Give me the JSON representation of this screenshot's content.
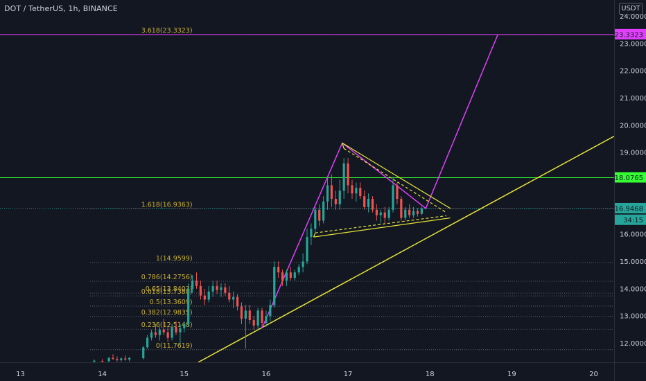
{
  "header": {
    "title": "DOT / TetherUS, 1h, BINANCE",
    "currency": "USDT"
  },
  "colors": {
    "background": "#131722",
    "up": "#26a69a",
    "down": "#ef5350",
    "magenta": "#e040fb",
    "green_line": "#33ff33",
    "yellow": "#e8e337",
    "fib": "#c9b037"
  },
  "chart_data": {
    "type": "candlestick",
    "symbol": "DOT / TetherUS",
    "interval": "1h",
    "exchange": "BINANCE",
    "ylim": [
      11.3,
      24.6
    ],
    "xlim": [
      12.75,
      20.25
    ],
    "y_ticks": [
      "12.0000",
      "13.0000",
      "14.0000",
      "15.0000",
      "16.0000",
      "17.0000",
      "18.0000",
      "19.0000",
      "20.0000",
      "21.0000",
      "22.0000",
      "23.0000",
      "24.0000"
    ],
    "x_ticks": [
      {
        "x": 13,
        "label": "13"
      },
      {
        "x": 14,
        "label": "14"
      },
      {
        "x": 15,
        "label": "15"
      },
      {
        "x": 16,
        "label": "16"
      },
      {
        "x": 17,
        "label": "17"
      },
      {
        "x": 18,
        "label": "18"
      },
      {
        "x": 19,
        "label": "19"
      },
      {
        "x": 20,
        "label": "20"
      }
    ],
    "price_badges": [
      {
        "value": 23.3323,
        "label": "23.3323",
        "color": "#e040fb"
      },
      {
        "value": 18.0765,
        "label": "18.0765",
        "color": "#33ff33"
      },
      {
        "value": 16.9468,
        "label": "16.9468",
        "color": "#26a69a"
      },
      {
        "value": 16.52,
        "label": "34:15",
        "color": "#26a69a"
      }
    ],
    "horizontal_lines": [
      {
        "name": "target",
        "value": 23.3323,
        "color": "#e040fb"
      },
      {
        "name": "resistance",
        "value": 18.0765,
        "color": "#33ff33"
      },
      {
        "name": "current",
        "value": 16.9468,
        "color": "#26a69a",
        "dotted": true
      }
    ],
    "fib_levels": [
      {
        "ratio": "3.618",
        "value": 23.3323,
        "label": "3.618(23.3323)"
      },
      {
        "ratio": "1.618",
        "value": 16.9363,
        "label": "1.618(16.9363)"
      },
      {
        "ratio": "1",
        "value": 14.9599,
        "label": "1(14.9599)"
      },
      {
        "ratio": "0.786",
        "value": 14.2756,
        "label": "0.786(14.2756)"
      },
      {
        "ratio": "0.65",
        "value": 13.8403,
        "label": "0.65(13.8403)"
      },
      {
        "ratio": "0.618",
        "value": 13.7388,
        "label": "0.618(13.7388)"
      },
      {
        "ratio": "0.5",
        "value": 13.3609,
        "label": "0.5(13.3609)"
      },
      {
        "ratio": "0.382",
        "value": 12.9835,
        "label": "0.382(12.9835)"
      },
      {
        "ratio": "0.236",
        "value": 12.5148,
        "label": "0.236(12.5148)"
      },
      {
        "ratio": "0",
        "value": 11.7619,
        "label": "0(11.7619)"
      }
    ],
    "trendlines": [
      {
        "name": "yellow-rising-support",
        "color": "#e8e337",
        "points": [
          [
            15.17,
            11.3
          ],
          [
            20.25,
            19.6
          ]
        ]
      },
      {
        "name": "magenta-impulse-path",
        "color": "#e040fb",
        "points": [
          [
            15.95,
            12.55
          ],
          [
            16.93,
            19.35
          ],
          [
            17.95,
            16.95
          ],
          [
            18.83,
            23.3323
          ]
        ]
      }
    ],
    "triangle": {
      "color": "#e8e337",
      "upper": [
        [
          16.93,
          19.35
        ],
        [
          18.25,
          16.95
        ]
      ],
      "lower": [
        [
          16.58,
          15.9
        ],
        [
          18.25,
          16.6
        ]
      ],
      "upper_band": [
        [
          16.95,
          19.15
        ],
        [
          18.2,
          16.8
        ]
      ],
      "lower_band": [
        [
          16.6,
          16.05
        ],
        [
          18.2,
          16.68
        ]
      ]
    },
    "candles": [
      {
        "x": 13.9,
        "o": 11.32,
        "h": 11.4,
        "l": 11.3,
        "c": 11.36
      },
      {
        "x": 14.0,
        "o": 11.35,
        "h": 11.42,
        "l": 11.3,
        "c": 11.33
      },
      {
        "x": 14.08,
        "o": 11.34,
        "h": 11.5,
        "l": 11.3,
        "c": 11.46
      },
      {
        "x": 14.13,
        "o": 11.46,
        "h": 11.6,
        "l": 11.4,
        "c": 11.42
      },
      {
        "x": 14.18,
        "o": 11.42,
        "h": 11.52,
        "l": 11.33,
        "c": 11.38
      },
      {
        "x": 14.23,
        "o": 11.38,
        "h": 11.48,
        "l": 11.32,
        "c": 11.44
      },
      {
        "x": 14.28,
        "o": 11.44,
        "h": 11.55,
        "l": 11.36,
        "c": 11.4
      },
      {
        "x": 14.33,
        "o": 11.4,
        "h": 11.5,
        "l": 11.33,
        "c": 11.46
      },
      {
        "x": 14.5,
        "o": 11.45,
        "h": 11.9,
        "l": 11.4,
        "c": 11.85
      },
      {
        "x": 14.55,
        "o": 11.85,
        "h": 12.3,
        "l": 11.8,
        "c": 12.2
      },
      {
        "x": 14.6,
        "o": 12.2,
        "h": 12.5,
        "l": 12.1,
        "c": 12.4
      },
      {
        "x": 14.65,
        "o": 12.4,
        "h": 12.7,
        "l": 12.2,
        "c": 12.3
      },
      {
        "x": 14.7,
        "o": 12.3,
        "h": 12.6,
        "l": 12.1,
        "c": 12.5
      },
      {
        "x": 14.75,
        "o": 12.5,
        "h": 12.9,
        "l": 12.3,
        "c": 12.4
      },
      {
        "x": 14.8,
        "o": 12.4,
        "h": 12.6,
        "l": 12.05,
        "c": 12.2
      },
      {
        "x": 14.85,
        "o": 12.2,
        "h": 12.7,
        "l": 12.1,
        "c": 12.6
      },
      {
        "x": 14.9,
        "o": 12.6,
        "h": 12.8,
        "l": 12.3,
        "c": 12.4
      },
      {
        "x": 14.95,
        "o": 12.4,
        "h": 12.7,
        "l": 11.95,
        "c": 12.55
      },
      {
        "x": 15.0,
        "o": 12.55,
        "h": 12.8,
        "l": 12.4,
        "c": 12.7
      },
      {
        "x": 15.05,
        "o": 12.7,
        "h": 14.2,
        "l": 12.6,
        "c": 14.0
      },
      {
        "x": 15.1,
        "o": 14.0,
        "h": 14.5,
        "l": 13.85,
        "c": 14.3
      },
      {
        "x": 15.15,
        "o": 14.3,
        "h": 14.6,
        "l": 14.0,
        "c": 14.1
      },
      {
        "x": 15.2,
        "o": 14.1,
        "h": 14.3,
        "l": 13.6,
        "c": 13.75
      },
      {
        "x": 15.25,
        "o": 13.75,
        "h": 14.0,
        "l": 13.4,
        "c": 13.6
      },
      {
        "x": 15.3,
        "o": 13.6,
        "h": 14.1,
        "l": 13.5,
        "c": 13.9
      },
      {
        "x": 15.35,
        "o": 13.9,
        "h": 14.3,
        "l": 13.7,
        "c": 14.1
      },
      {
        "x": 15.4,
        "o": 14.1,
        "h": 14.3,
        "l": 13.8,
        "c": 13.95
      },
      {
        "x": 15.45,
        "o": 13.95,
        "h": 14.2,
        "l": 13.7,
        "c": 14.05
      },
      {
        "x": 15.5,
        "o": 14.05,
        "h": 14.2,
        "l": 13.75,
        "c": 13.85
      },
      {
        "x": 15.55,
        "o": 13.85,
        "h": 14.1,
        "l": 13.5,
        "c": 13.6
      },
      {
        "x": 15.6,
        "o": 13.6,
        "h": 13.9,
        "l": 13.3,
        "c": 13.7
      },
      {
        "x": 15.65,
        "o": 13.7,
        "h": 13.8,
        "l": 13.2,
        "c": 13.35
      },
      {
        "x": 15.7,
        "o": 13.35,
        "h": 13.5,
        "l": 12.7,
        "c": 12.9
      },
      {
        "x": 15.75,
        "o": 12.9,
        "h": 13.4,
        "l": 11.8,
        "c": 13.2
      },
      {
        "x": 15.8,
        "o": 13.2,
        "h": 13.4,
        "l": 12.7,
        "c": 12.85
      },
      {
        "x": 15.85,
        "o": 12.85,
        "h": 13.0,
        "l": 12.5,
        "c": 12.65
      },
      {
        "x": 15.9,
        "o": 12.65,
        "h": 13.3,
        "l": 12.5,
        "c": 13.2
      },
      {
        "x": 15.95,
        "o": 13.2,
        "h": 13.3,
        "l": 12.6,
        "c": 12.75
      },
      {
        "x": 16.0,
        "o": 12.75,
        "h": 13.2,
        "l": 12.6,
        "c": 13.0
      },
      {
        "x": 16.05,
        "o": 13.0,
        "h": 13.6,
        "l": 12.8,
        "c": 13.4
      },
      {
        "x": 16.1,
        "o": 13.4,
        "h": 15.0,
        "l": 13.3,
        "c": 14.8
      },
      {
        "x": 16.15,
        "o": 14.8,
        "h": 15.0,
        "l": 14.4,
        "c": 14.6
      },
      {
        "x": 16.2,
        "o": 14.6,
        "h": 14.7,
        "l": 14.1,
        "c": 14.3
      },
      {
        "x": 16.25,
        "o": 14.3,
        "h": 14.7,
        "l": 14.1,
        "c": 14.6
      },
      {
        "x": 16.3,
        "o": 14.6,
        "h": 14.8,
        "l": 14.3,
        "c": 14.4
      },
      {
        "x": 16.35,
        "o": 14.4,
        "h": 14.7,
        "l": 14.3,
        "c": 14.6
      },
      {
        "x": 16.4,
        "o": 14.6,
        "h": 14.9,
        "l": 14.5,
        "c": 14.8
      },
      {
        "x": 16.45,
        "o": 14.8,
        "h": 15.3,
        "l": 14.6,
        "c": 15.0
      },
      {
        "x": 16.5,
        "o": 15.0,
        "h": 16.2,
        "l": 14.9,
        "c": 15.9
      },
      {
        "x": 16.55,
        "o": 15.9,
        "h": 16.4,
        "l": 15.6,
        "c": 16.2
      },
      {
        "x": 16.6,
        "o": 16.2,
        "h": 17.0,
        "l": 16.0,
        "c": 16.9
      },
      {
        "x": 16.65,
        "o": 16.9,
        "h": 17.1,
        "l": 16.3,
        "c": 16.5
      },
      {
        "x": 16.7,
        "o": 16.5,
        "h": 17.4,
        "l": 16.4,
        "c": 17.2
      },
      {
        "x": 16.75,
        "o": 17.2,
        "h": 18.1,
        "l": 16.9,
        "c": 17.8
      },
      {
        "x": 16.8,
        "o": 17.8,
        "h": 18.2,
        "l": 17.0,
        "c": 17.3
      },
      {
        "x": 16.85,
        "o": 17.3,
        "h": 17.6,
        "l": 16.9,
        "c": 17.1
      },
      {
        "x": 16.9,
        "o": 17.1,
        "h": 18.0,
        "l": 16.9,
        "c": 17.6
      },
      {
        "x": 16.95,
        "o": 17.6,
        "h": 18.8,
        "l": 17.3,
        "c": 18.6
      },
      {
        "x": 17.0,
        "o": 18.6,
        "h": 18.8,
        "l": 17.5,
        "c": 17.8
      },
      {
        "x": 17.05,
        "o": 17.8,
        "h": 18.0,
        "l": 17.3,
        "c": 17.5
      },
      {
        "x": 17.1,
        "o": 17.5,
        "h": 17.9,
        "l": 17.2,
        "c": 17.7
      },
      {
        "x": 17.15,
        "o": 17.7,
        "h": 17.9,
        "l": 17.3,
        "c": 17.4
      },
      {
        "x": 17.2,
        "o": 17.4,
        "h": 17.6,
        "l": 16.9,
        "c": 17.0
      },
      {
        "x": 17.25,
        "o": 17.0,
        "h": 17.5,
        "l": 16.8,
        "c": 17.3
      },
      {
        "x": 17.3,
        "o": 17.3,
        "h": 17.4,
        "l": 16.8,
        "c": 16.9
      },
      {
        "x": 17.35,
        "o": 16.9,
        "h": 17.1,
        "l": 16.5,
        "c": 16.7
      },
      {
        "x": 17.4,
        "o": 16.7,
        "h": 16.9,
        "l": 16.4,
        "c": 16.8
      },
      {
        "x": 17.45,
        "o": 16.8,
        "h": 17.0,
        "l": 16.4,
        "c": 16.6
      },
      {
        "x": 17.5,
        "o": 16.6,
        "h": 17.0,
        "l": 16.5,
        "c": 16.9
      },
      {
        "x": 17.55,
        "o": 16.9,
        "h": 18.1,
        "l": 16.8,
        "c": 17.8
      },
      {
        "x": 17.6,
        "o": 17.8,
        "h": 17.9,
        "l": 17.1,
        "c": 17.3
      },
      {
        "x": 17.65,
        "o": 17.3,
        "h": 17.4,
        "l": 16.5,
        "c": 16.6
      },
      {
        "x": 17.7,
        "o": 16.6,
        "h": 17.0,
        "l": 16.5,
        "c": 16.9
      },
      {
        "x": 17.75,
        "o": 16.9,
        "h": 17.1,
        "l": 16.6,
        "c": 16.7
      },
      {
        "x": 17.8,
        "o": 16.7,
        "h": 17.0,
        "l": 16.6,
        "c": 16.85
      },
      {
        "x": 17.85,
        "o": 16.85,
        "h": 16.95,
        "l": 16.65,
        "c": 16.75
      },
      {
        "x": 17.9,
        "o": 16.75,
        "h": 17.0,
        "l": 16.7,
        "c": 16.95
      }
    ]
  }
}
